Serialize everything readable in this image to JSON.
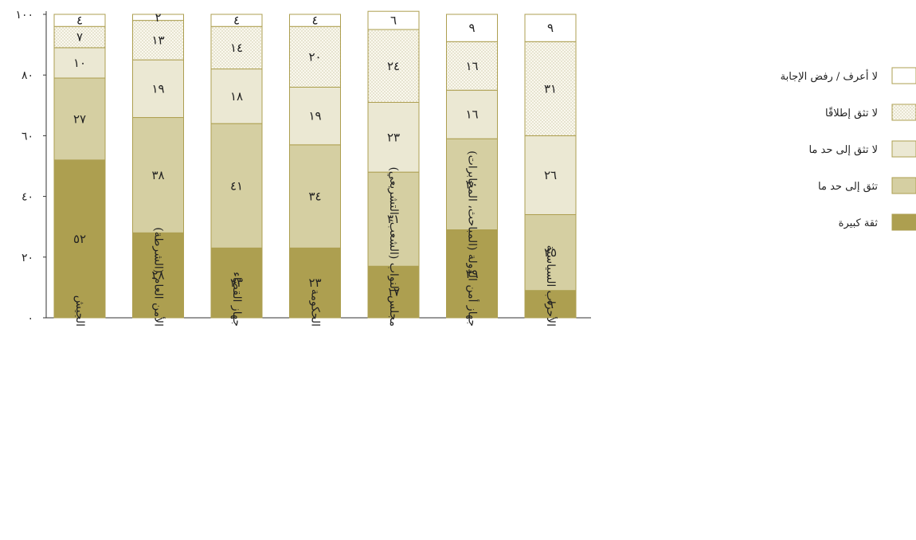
{
  "chart_data": {
    "type": "bar",
    "stacked": true,
    "ylim": [
      0,
      100
    ],
    "y_ticks": [
      0,
      20,
      40,
      60,
      80,
      100
    ],
    "y_tick_labels": [
      "٠",
      "٢٠",
      "٤٠",
      "٦٠",
      "٨٠",
      "١٠٠"
    ],
    "categories": [
      "الجيش",
      "الأمن العام (الشرطة)",
      "جهاز القضاء",
      "الحكومة",
      "مجلس النواب (الشعب، التشريعي)",
      "جهاز أمن الدولة (المباحث، المخابرات)",
      "الأحزاب السياسية"
    ],
    "series": [
      {
        "name": "ثقة كبيرة",
        "color": "#ad9f50",
        "pattern": "solid",
        "values": [
          52,
          28,
          23,
          23,
          17,
          29,
          9
        ],
        "labels": [
          "٥٢",
          "٢٨",
          "٢٣",
          "٢٣",
          "١٧",
          "٢٩",
          "٩"
        ]
      },
      {
        "name": "تثق إلى حد ما",
        "color": "#d5cfa2",
        "pattern": "solid",
        "values": [
          27,
          38,
          41,
          34,
          31,
          30,
          25
        ],
        "labels": [
          "٢٧",
          "٣٨",
          "٤١",
          "٣٤",
          "٣١",
          "٣٠",
          "٢٥"
        ]
      },
      {
        "name": "لا تثق إلى حد ما",
        "color": "#ebe8d3",
        "pattern": "solid",
        "values": [
          10,
          19,
          18,
          19,
          23,
          16,
          26
        ],
        "labels": [
          "١٠",
          "١٩",
          "١٨",
          "١٩",
          "٢٣",
          "١٦",
          "٢٦"
        ]
      },
      {
        "name": "لا تثق إطلاقًا",
        "color": "#faf8ee",
        "pattern": "dots",
        "values": [
          7,
          13,
          14,
          20,
          24,
          16,
          31
        ],
        "labels": [
          "٧",
          "١٣",
          "١٤",
          "٢٠",
          "٢٤",
          "١٦",
          "٣١"
        ]
      },
      {
        "name": "لا أعرف / رفض الإجابة",
        "color": "#ffffff",
        "pattern": "solid",
        "values": [
          4,
          2,
          4,
          4,
          6,
          9,
          9
        ],
        "labels": [
          "٤",
          "٢",
          "٤",
          "٤",
          "٦",
          "٩",
          "٩"
        ]
      }
    ],
    "legend_order": [
      4,
      3,
      2,
      1,
      0
    ],
    "legend_placement": "right",
    "border_color": "#ad9f50",
    "grid": false,
    "title": "",
    "xlabel": "",
    "ylabel": ""
  }
}
